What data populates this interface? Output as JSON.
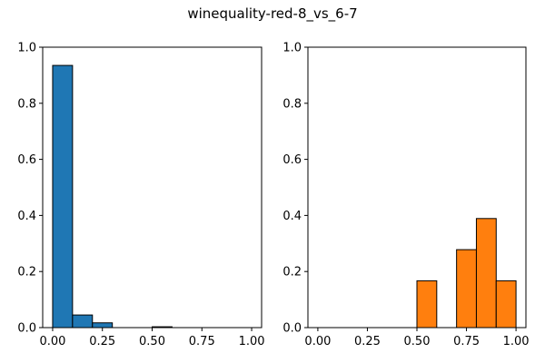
{
  "figure": {
    "title": "winequality-red-8_vs_6-7"
  },
  "chart_data": [
    {
      "type": "bar",
      "subtype": "histogram",
      "color": "#1f77b4",
      "bin_edges": [
        0.0,
        0.1,
        0.2,
        0.3,
        0.4,
        0.5,
        0.6,
        0.7,
        0.8,
        0.9,
        1.0
      ],
      "values": [
        0.935,
        0.045,
        0.017,
        0.0,
        0.0,
        0.003,
        0.0,
        0.0,
        0.0,
        0.0
      ],
      "xlim": [
        -0.05,
        1.05
      ],
      "ylim": [
        0,
        1.0
      ],
      "xticks": [
        0.0,
        0.25,
        0.5,
        0.75,
        1.0
      ],
      "xtick_labels": [
        "0.00",
        "0.25",
        "0.50",
        "0.75",
        "1.00"
      ],
      "yticks": [
        0.0,
        0.2,
        0.4,
        0.6,
        0.8,
        1.0
      ],
      "ytick_labels": [
        "0.0",
        "0.2",
        "0.4",
        "0.6",
        "0.8",
        "1.0"
      ],
      "grid": false
    },
    {
      "type": "bar",
      "subtype": "histogram",
      "color": "#ff7f0e",
      "bin_edges": [
        0.0,
        0.1,
        0.2,
        0.3,
        0.4,
        0.5,
        0.6,
        0.7,
        0.8,
        0.9,
        1.0
      ],
      "values": [
        0.0,
        0.0,
        0.0,
        0.0,
        0.0,
        0.167,
        0.0,
        0.278,
        0.389,
        0.167
      ],
      "xlim": [
        -0.05,
        1.05
      ],
      "ylim": [
        0,
        1.0
      ],
      "xticks": [
        0.0,
        0.25,
        0.5,
        0.75,
        1.0
      ],
      "xtick_labels": [
        "0.00",
        "0.25",
        "0.50",
        "0.75",
        "1.00"
      ],
      "yticks": [
        0.0,
        0.2,
        0.4,
        0.6,
        0.8,
        1.0
      ],
      "ytick_labels": [
        "0.0",
        "0.2",
        "0.4",
        "0.6",
        "0.8",
        "1.0"
      ],
      "grid": false
    }
  ]
}
